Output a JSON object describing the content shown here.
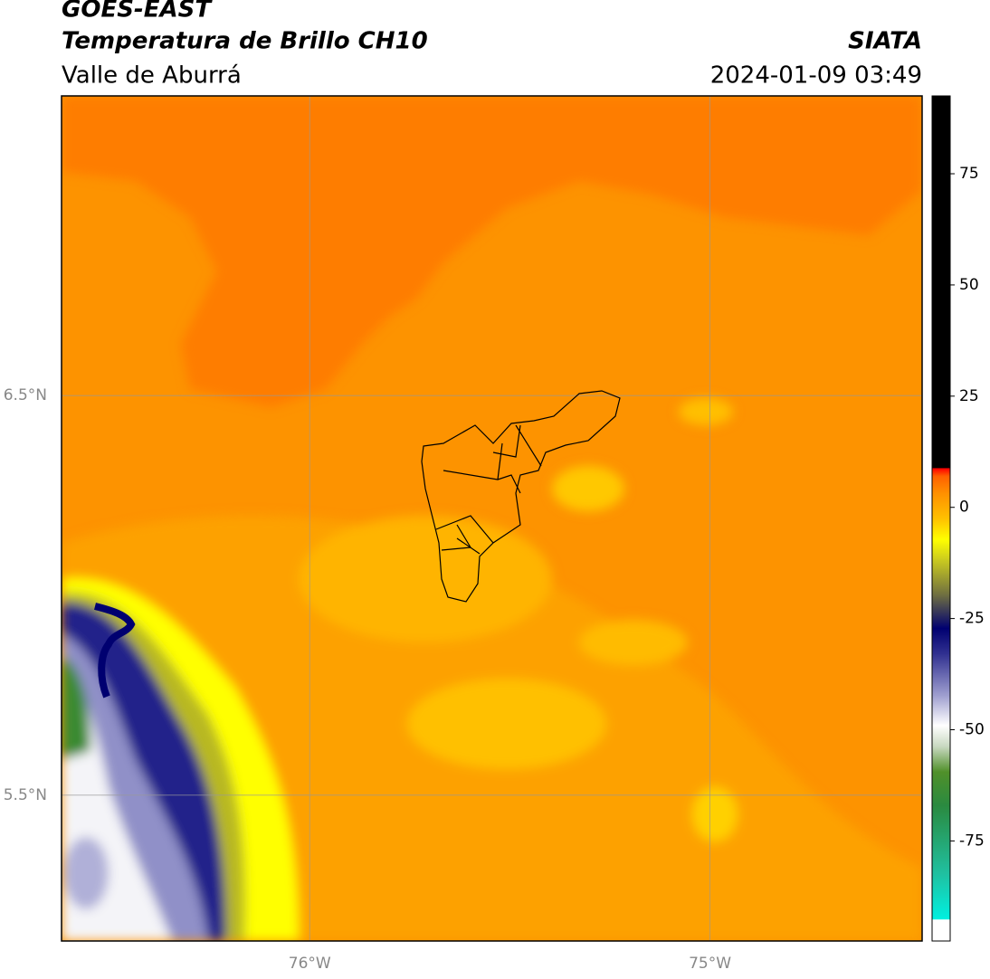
{
  "header": {
    "satellite": "GOES-EAST",
    "title": "Temperatura de Brillo CH10",
    "region": "Valle de Aburrá",
    "source": "SIATA",
    "datetime": "2024-01-09 03:49"
  },
  "map": {
    "xlim": [
      -76.62,
      -74.47
    ],
    "ylim": [
      5.135,
      7.25
    ],
    "xticks": [
      {
        "value": -76,
        "label": "76°W"
      },
      {
        "value": -75,
        "label": "75°W"
      }
    ],
    "yticks": [
      {
        "value": 6.5,
        "label": "6.5°N"
      },
      {
        "value": 5.5,
        "label": "5.5°N"
      }
    ],
    "grid": true
  },
  "colorbar": {
    "lim": [
      -97.5,
      92.5
    ],
    "ticks": [
      -75,
      -50,
      -25,
      0,
      25,
      50,
      75
    ]
  }
}
